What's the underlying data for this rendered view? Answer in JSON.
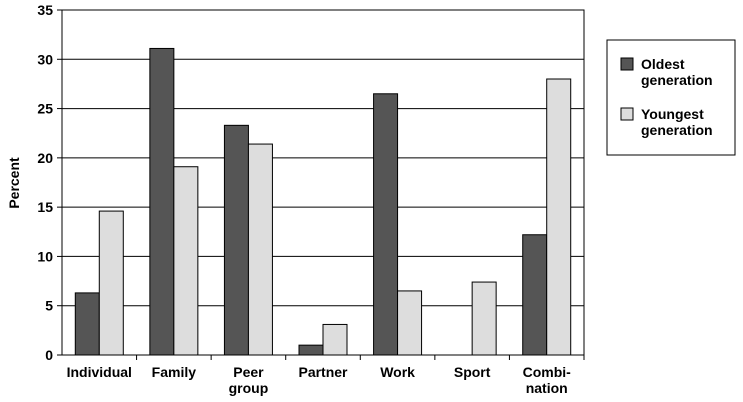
{
  "chart_data": {
    "type": "bar",
    "ylabel": "Percent",
    "categories": [
      "Individual",
      "Family",
      "Peer\ngroup",
      "Partner",
      "Work",
      "Sport",
      "Combi-\nnation"
    ],
    "series": [
      {
        "name": "Oldest\ngeneration",
        "color": "#555555",
        "values": [
          6.3,
          31.1,
          23.3,
          1.0,
          26.5,
          0,
          12.2
        ]
      },
      {
        "name": "Youngest\ngeneration",
        "color": "#dddddd",
        "values": [
          14.6,
          19.1,
          21.4,
          3.1,
          6.5,
          7.4,
          28.0
        ]
      }
    ],
    "ylim": [
      0,
      35
    ],
    "yticks": [
      0,
      5,
      10,
      15,
      20,
      25,
      30,
      35
    ],
    "grid": true,
    "legend": "right"
  }
}
